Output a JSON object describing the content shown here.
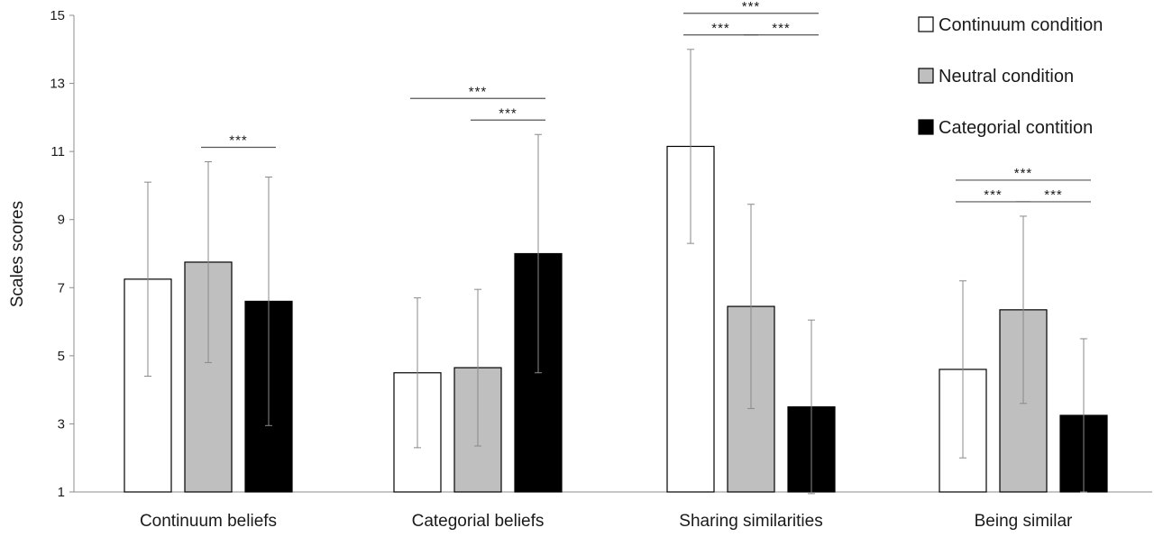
{
  "chart_data": {
    "type": "bar",
    "title": "",
    "xlabel": "",
    "ylabel": "Scales scores",
    "ylim": [
      1,
      15
    ],
    "yticks": [
      1,
      3,
      5,
      7,
      9,
      11,
      13,
      15
    ],
    "grid": false,
    "legend_position": "top-right",
    "categories": [
      "Continuum beliefs",
      "Categorial beliefs",
      "Sharing similarities",
      "Being similar"
    ],
    "series": [
      {
        "name": "Continuum condition",
        "color": "#ffffff",
        "values": [
          7.25,
          4.5,
          11.15,
          4.6
        ],
        "error": [
          2.85,
          2.2,
          2.85,
          2.6
        ]
      },
      {
        "name": "Neutral condition",
        "color": "#bfbfbf",
        "values": [
          7.75,
          4.65,
          6.45,
          6.35
        ],
        "error": [
          2.95,
          2.3,
          3.0,
          2.75
        ]
      },
      {
        "name": "Categorial contition",
        "color": "#000000",
        "values": [
          6.6,
          8.0,
          3.5,
          3.25
        ],
        "error": [
          3.65,
          3.5,
          2.55,
          2.25
        ]
      }
    ],
    "significance": [
      {
        "category": 0,
        "from": 1,
        "to": 2,
        "label": "***",
        "level": 0
      },
      {
        "category": 1,
        "from": 0,
        "to": 2,
        "label": "***",
        "level": 1
      },
      {
        "category": 1,
        "from": 1,
        "to": 2,
        "label": "***",
        "level": 0
      },
      {
        "category": 2,
        "from": 0,
        "to": 2,
        "label": "***",
        "level": 1
      },
      {
        "category": 2,
        "from": 0,
        "to": 1,
        "label": "***",
        "level": 0
      },
      {
        "category": 2,
        "from": 1,
        "to": 2,
        "label": "***",
        "level": 0
      },
      {
        "category": 3,
        "from": 0,
        "to": 2,
        "label": "***",
        "level": 1
      },
      {
        "category": 3,
        "from": 0,
        "to": 1,
        "label": "***",
        "level": 0
      },
      {
        "category": 3,
        "from": 1,
        "to": 2,
        "label": "***",
        "level": 0
      }
    ]
  }
}
